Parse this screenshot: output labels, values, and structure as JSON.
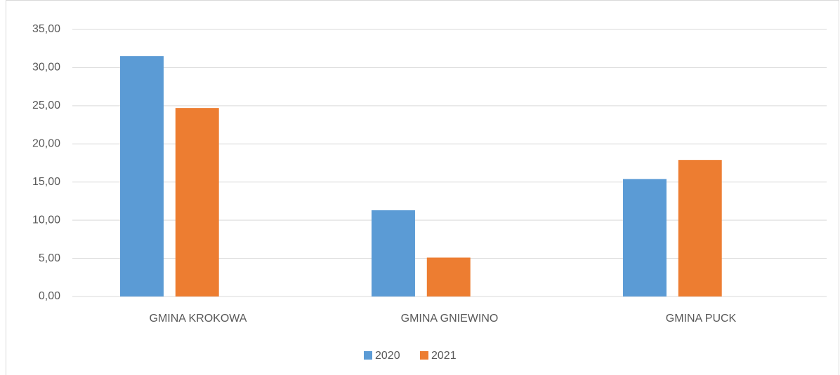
{
  "chart_data": {
    "type": "bar",
    "categories": [
      "GMINA KROKOWA",
      "GMINA GNIEWINO",
      "GMINA PUCK"
    ],
    "series": [
      {
        "name": "2020",
        "color": "#5b9bd5",
        "values": [
          31.5,
          11.3,
          15.4
        ]
      },
      {
        "name": "2021",
        "color": "#ed7d31",
        "values": [
          24.7,
          5.1,
          17.9
        ]
      }
    ],
    "ylim": [
      0,
      35
    ],
    "yticks": [
      {
        "value": 0,
        "label": "0,00"
      },
      {
        "value": 5,
        "label": "5,00"
      },
      {
        "value": 10,
        "label": "10,00"
      },
      {
        "value": 15,
        "label": "15,00"
      },
      {
        "value": 20,
        "label": "20,00"
      },
      {
        "value": 25,
        "label": "25,00"
      },
      {
        "value": 30,
        "label": "30,00"
      },
      {
        "value": 35,
        "label": "35,00"
      }
    ],
    "grid": true,
    "legend": "bottom"
  }
}
